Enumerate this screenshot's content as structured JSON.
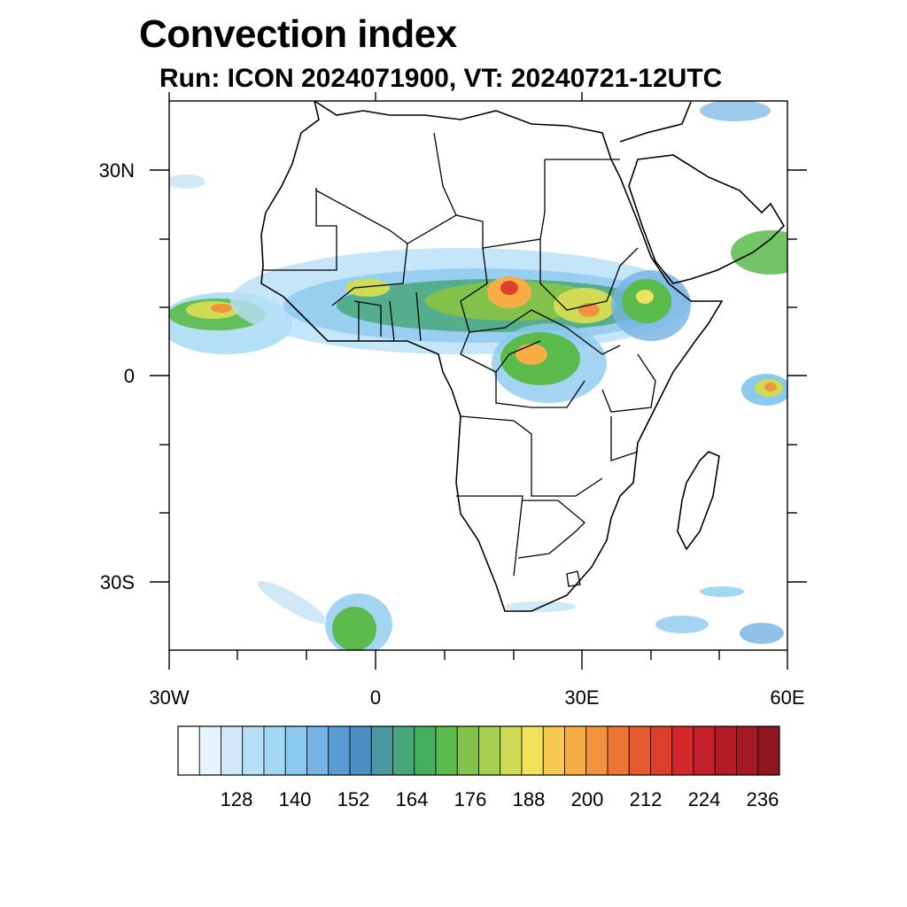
{
  "title": "Convection index",
  "subtitle": "Run: ICON 2024071900,  VT: 20240721-12UTC",
  "axes": {
    "lat_labels": [
      "30N",
      "0",
      "30S"
    ],
    "lon_labels": [
      "30W",
      "0",
      "30E",
      "60E"
    ],
    "lon_range": [
      -30,
      60
    ],
    "lat_range": [
      -40,
      40
    ]
  },
  "colorbar": {
    "labels": [
      "128",
      "140",
      "152",
      "164",
      "176",
      "188",
      "200",
      "212",
      "224",
      "236"
    ],
    "colors": [
      "#ffffff",
      "#e6f3fb",
      "#cfe9f7",
      "#b7e0f6",
      "#a1d8f4",
      "#8cc9ef",
      "#74b3e3",
      "#5b9bd4",
      "#4b8fc4",
      "#4c99a3",
      "#48a77a",
      "#45b05c",
      "#5aba4c",
      "#82c24b",
      "#a6cf4f",
      "#cfdc53",
      "#f0e25b",
      "#f7c84f",
      "#f6ad46",
      "#f3923c",
      "#ee7436",
      "#e65a30",
      "#dd3f2d",
      "#d3292b",
      "#c51f2a",
      "#b41b27",
      "#a31924",
      "#8e1620"
    ]
  },
  "legend_chart": {
    "type": "heatmap",
    "variable": "Convection index",
    "units": "",
    "levels_labeled": [
      128,
      140,
      152,
      164,
      176,
      188,
      200,
      212,
      224,
      236
    ]
  }
}
